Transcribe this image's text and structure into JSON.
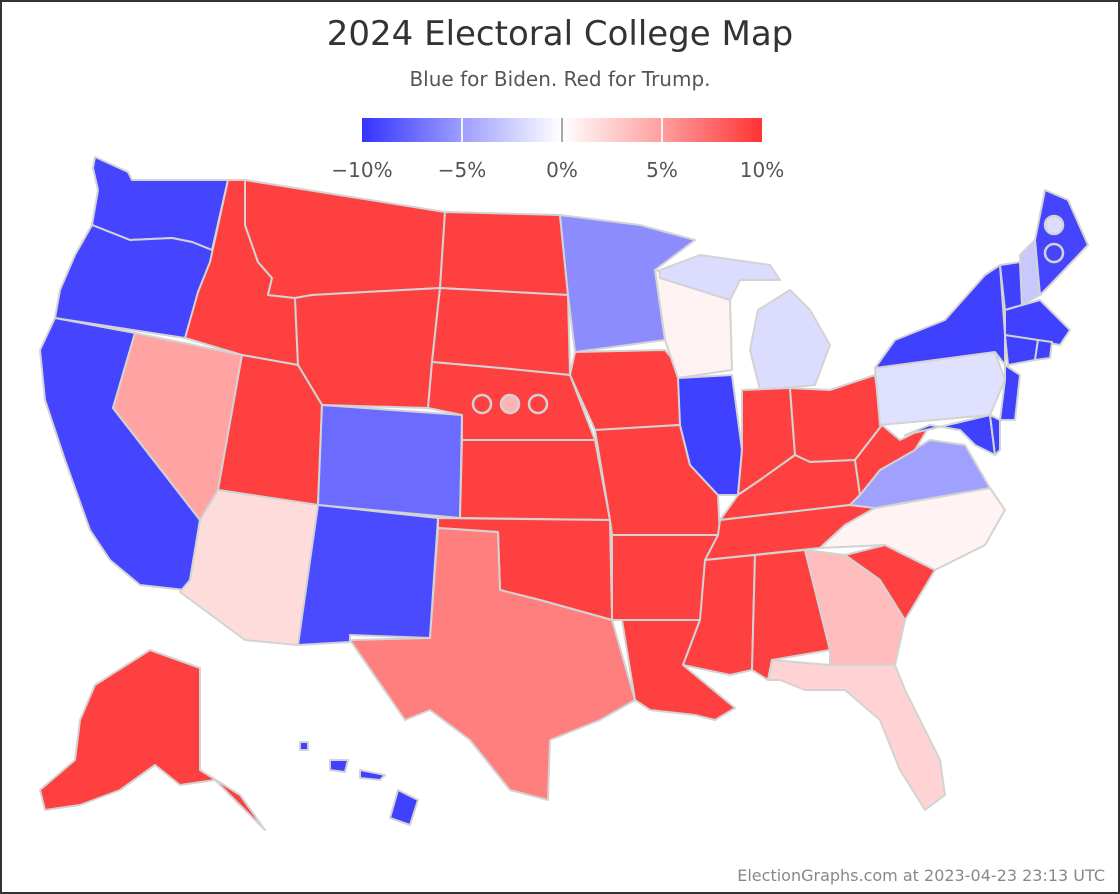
{
  "title": "2024 Electoral College Map",
  "subtitle": "Blue for Biden. Red for Trump.",
  "legend": {
    "labels": [
      "−10%",
      "−5%",
      "0%",
      "5%",
      "10%"
    ],
    "colors": {
      "dem_strong": "#3333ff",
      "dem_lean": "#9e9eff",
      "tossup": "#ffffff",
      "rep_lean": "#ff9e9e",
      "rep_strong": "#ff3333"
    }
  },
  "footer": "ElectionGraphs.com at 2023-04-23 23:13 UTC",
  "states": {
    "WA": "#4545ff",
    "OR": "#4545ff",
    "CA": "#4545ff",
    "NV": "#ffa3a3",
    "ID": "#ff4040",
    "MT": "#ff4040",
    "WY": "#ff4040",
    "UT": "#ff4040",
    "AZ": "#ffdcdc",
    "CO": "#6b6bff",
    "NM": "#4a4aff",
    "ND": "#ff4040",
    "SD": "#ff4040",
    "NE": "#ff4040",
    "KS": "#ff4040",
    "OK": "#ff4040",
    "TX": "#ff7f7f",
    "MN": "#8c8cff",
    "IA": "#ff4040",
    "MO": "#ff4040",
    "AR": "#ff4040",
    "LA": "#ff4040",
    "WI": "#fff2f2",
    "IL": "#4040ff",
    "MI": "#dcdcff",
    "IN": "#ff4040",
    "OH": "#ff4040",
    "KY": "#ff4040",
    "TN": "#ff4040",
    "MS": "#ff4040",
    "AL": "#ff4040",
    "GA": "#ffbcbc",
    "FL": "#ffd3d3",
    "SC": "#ff4040",
    "NC": "#fff3f3",
    "VA": "#a0a0ff",
    "WV": "#ff4040",
    "PA": "#e0e0ff",
    "NY": "#4040ff",
    "ME": "#4545ff",
    "NH": "#c8c8ff",
    "VT": "#4040ff",
    "MA": "#4040ff",
    "CT": "#4040ff",
    "RI": "#4040ff",
    "NJ": "#4040ff",
    "DE": "#4040ff",
    "MD": "#4040ff",
    "AK": "#ff4040",
    "HI": "#4040ff"
  },
  "district_markers": {
    "NE": [
      "#ff4040",
      "#ffb3b3",
      "#ff4040"
    ],
    "ME": [
      "#dcdcff",
      "#4545ff"
    ]
  }
}
